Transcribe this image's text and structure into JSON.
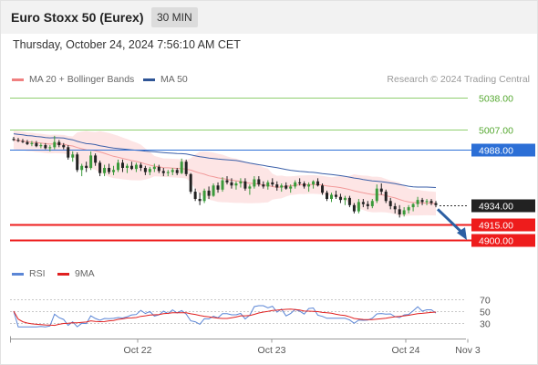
{
  "title": "Euro Stoxx 50 (Eurex)",
  "timeframe": "30 MIN",
  "timestamp": "Thursday, October 24, 2024 7:56:10 AM CET",
  "legend": [
    {
      "label": "MA 20 + Bollinger Bands",
      "color": "#f08080"
    },
    {
      "label": "MA 50",
      "color": "#2f5596"
    }
  ],
  "credit": "Research © 2024 Trading Central",
  "rsi_legend": [
    {
      "label": "RSI",
      "color": "#5b86d6"
    },
    {
      "label": "9MA",
      "color": "#e02020"
    }
  ],
  "colors": {
    "up": "#3a9a3a",
    "down": "#222222",
    "band": "#fde0e0",
    "ma20": "#f29a9a",
    "ma50": "#3b5fa8",
    "green_line": "#8fcf6f",
    "blue_line": "#2c6fd6",
    "red_line": "#ee1c1c",
    "last_bg": "#222222",
    "arrow": "#2c5fa3"
  },
  "chart_data": [
    {
      "type": "candlestick",
      "x_ticks": [
        "Oct 22",
        "Oct 23",
        "Oct 24",
        "Nov 3"
      ],
      "ylim": [
        4880,
        5045
      ],
      "levels": [
        {
          "value": 5038.0,
          "label": "5038.00",
          "style": "green"
        },
        {
          "value": 5007.0,
          "label": "5007.00",
          "style": "green"
        },
        {
          "value": 4988.0,
          "label": "4988.00",
          "style": "blue"
        },
        {
          "value": 4934.0,
          "label": "4934.00",
          "style": "last"
        },
        {
          "value": 4915.0,
          "label": "4915.00",
          "style": "red"
        },
        {
          "value": 4900.0,
          "label": "4900.00",
          "style": "red"
        }
      ],
      "series": [
        {
          "name": "MA 20 + Bollinger Bands"
        },
        {
          "name": "MA 50"
        }
      ],
      "candles": [
        [
          4998,
          5000,
          4996,
          4997
        ],
        [
          4997,
          4999,
          4995,
          4996
        ],
        [
          4996,
          4998,
          4994,
          4995
        ],
        [
          4995,
          4997,
          4992,
          4993
        ],
        [
          4993,
          4996,
          4991,
          4994
        ],
        [
          4994,
          4996,
          4990,
          4991
        ],
        [
          4991,
          4994,
          4989,
          4992
        ],
        [
          4992,
          4994,
          4988,
          4989
        ],
        [
          4989,
          4992,
          4986,
          4990
        ],
        [
          4990,
          5001,
          4988,
          4995
        ],
        [
          4995,
          4997,
          4990,
          4992
        ],
        [
          4992,
          4994,
          4988,
          4990
        ],
        [
          4990,
          4992,
          4978,
          4980
        ],
        [
          4980,
          4986,
          4976,
          4983
        ],
        [
          4983,
          4985,
          4966,
          4968
        ],
        [
          4968,
          4974,
          4962,
          4972
        ],
        [
          4972,
          4976,
          4966,
          4970
        ],
        [
          4970,
          4986,
          4968,
          4982
        ],
        [
          4982,
          4984,
          4972,
          4975
        ],
        [
          4975,
          4977,
          4962,
          4965
        ],
        [
          4965,
          4973,
          4962,
          4970
        ],
        [
          4970,
          4974,
          4964,
          4966
        ],
        [
          4966,
          4972,
          4963,
          4968
        ],
        [
          4968,
          4978,
          4966,
          4975
        ],
        [
          4975,
          4978,
          4966,
          4970
        ],
        [
          4970,
          4974,
          4965,
          4972
        ],
        [
          4972,
          4976,
          4968,
          4969
        ],
        [
          4969,
          4975,
          4966,
          4973
        ],
        [
          4973,
          4975,
          4967,
          4970
        ],
        [
          4970,
          4972,
          4963,
          4966
        ],
        [
          4966,
          4971,
          4963,
          4969
        ],
        [
          4969,
          4974,
          4966,
          4971
        ],
        [
          4971,
          4973,
          4965,
          4967
        ],
        [
          4967,
          4970,
          4962,
          4965
        ],
        [
          4965,
          4968,
          4962,
          4966
        ],
        [
          4966,
          4970,
          4963,
          4968
        ],
        [
          4968,
          4970,
          4963,
          4965
        ],
        [
          4965,
          4979,
          4964,
          4976
        ],
        [
          4976,
          4978,
          4962,
          4964
        ],
        [
          4964,
          4965,
          4945,
          4947
        ],
        [
          4947,
          4950,
          4938,
          4940
        ],
        [
          4940,
          4946,
          4934,
          4938
        ],
        [
          4938,
          4950,
          4936,
          4948
        ],
        [
          4948,
          4952,
          4940,
          4943
        ],
        [
          4943,
          4955,
          4942,
          4953
        ],
        [
          4953,
          4956,
          4946,
          4949
        ],
        [
          4949,
          4961,
          4947,
          4958
        ],
        [
          4958,
          4962,
          4954,
          4956
        ],
        [
          4956,
          4960,
          4950,
          4953
        ],
        [
          4953,
          4957,
          4949,
          4955
        ],
        [
          4955,
          4960,
          4951,
          4957
        ],
        [
          4957,
          4960,
          4948,
          4950
        ],
        [
          4950,
          4954,
          4944,
          4952
        ],
        [
          4952,
          4962,
          4950,
          4959
        ],
        [
          4959,
          4962,
          4952,
          4954
        ],
        [
          4954,
          4957,
          4950,
          4952
        ],
        [
          4952,
          4958,
          4949,
          4956
        ],
        [
          4956,
          4960,
          4952,
          4954
        ],
        [
          4954,
          4957,
          4948,
          4951
        ],
        [
          4951,
          4955,
          4947,
          4953
        ],
        [
          4953,
          4956,
          4949,
          4950
        ],
        [
          4950,
          4954,
          4946,
          4952
        ],
        [
          4952,
          4958,
          4950,
          4956
        ],
        [
          4956,
          4960,
          4953,
          4955
        ],
        [
          4955,
          4957,
          4950,
          4952
        ],
        [
          4952,
          4956,
          4947,
          4954
        ],
        [
          4954,
          4958,
          4950,
          4957
        ],
        [
          4957,
          4960,
          4952,
          4953
        ],
        [
          4953,
          4955,
          4944,
          4946
        ],
        [
          4946,
          4948,
          4938,
          4940
        ],
        [
          4940,
          4946,
          4937,
          4944
        ],
        [
          4944,
          4948,
          4940,
          4942
        ],
        [
          4942,
          4945,
          4936,
          4939
        ],
        [
          4939,
          4943,
          4934,
          4941
        ],
        [
          4941,
          4943,
          4932,
          4934
        ],
        [
          4934,
          4936,
          4926,
          4928
        ],
        [
          4928,
          4940,
          4926,
          4937
        ],
        [
          4937,
          4940,
          4932,
          4935
        ],
        [
          4935,
          4938,
          4930,
          4933
        ],
        [
          4933,
          4940,
          4931,
          4938
        ],
        [
          4938,
          4954,
          4936,
          4950
        ],
        [
          4950,
          4955,
          4944,
          4947
        ],
        [
          4947,
          4949,
          4936,
          4938
        ],
        [
          4938,
          4941,
          4930,
          4933
        ],
        [
          4933,
          4936,
          4926,
          4930
        ],
        [
          4930,
          4934,
          4922,
          4925
        ],
        [
          4925,
          4932,
          4923,
          4929
        ],
        [
          4929,
          4934,
          4926,
          4932
        ],
        [
          4932,
          4936,
          4928,
          4935
        ],
        [
          4935,
          4942,
          4932,
          4939
        ],
        [
          4939,
          4941,
          4934,
          4937
        ],
        [
          4937,
          4940,
          4934,
          4938
        ],
        [
          4938,
          4940,
          4934,
          4936
        ],
        [
          4936,
          4938,
          4932,
          4934
        ]
      ]
    },
    {
      "type": "line",
      "name": "RSI",
      "ylim": [
        20,
        80
      ],
      "y_ticks": [
        70,
        50,
        30
      ],
      "series": [
        {
          "name": "RSI"
        },
        {
          "name": "9MA"
        }
      ]
    }
  ]
}
